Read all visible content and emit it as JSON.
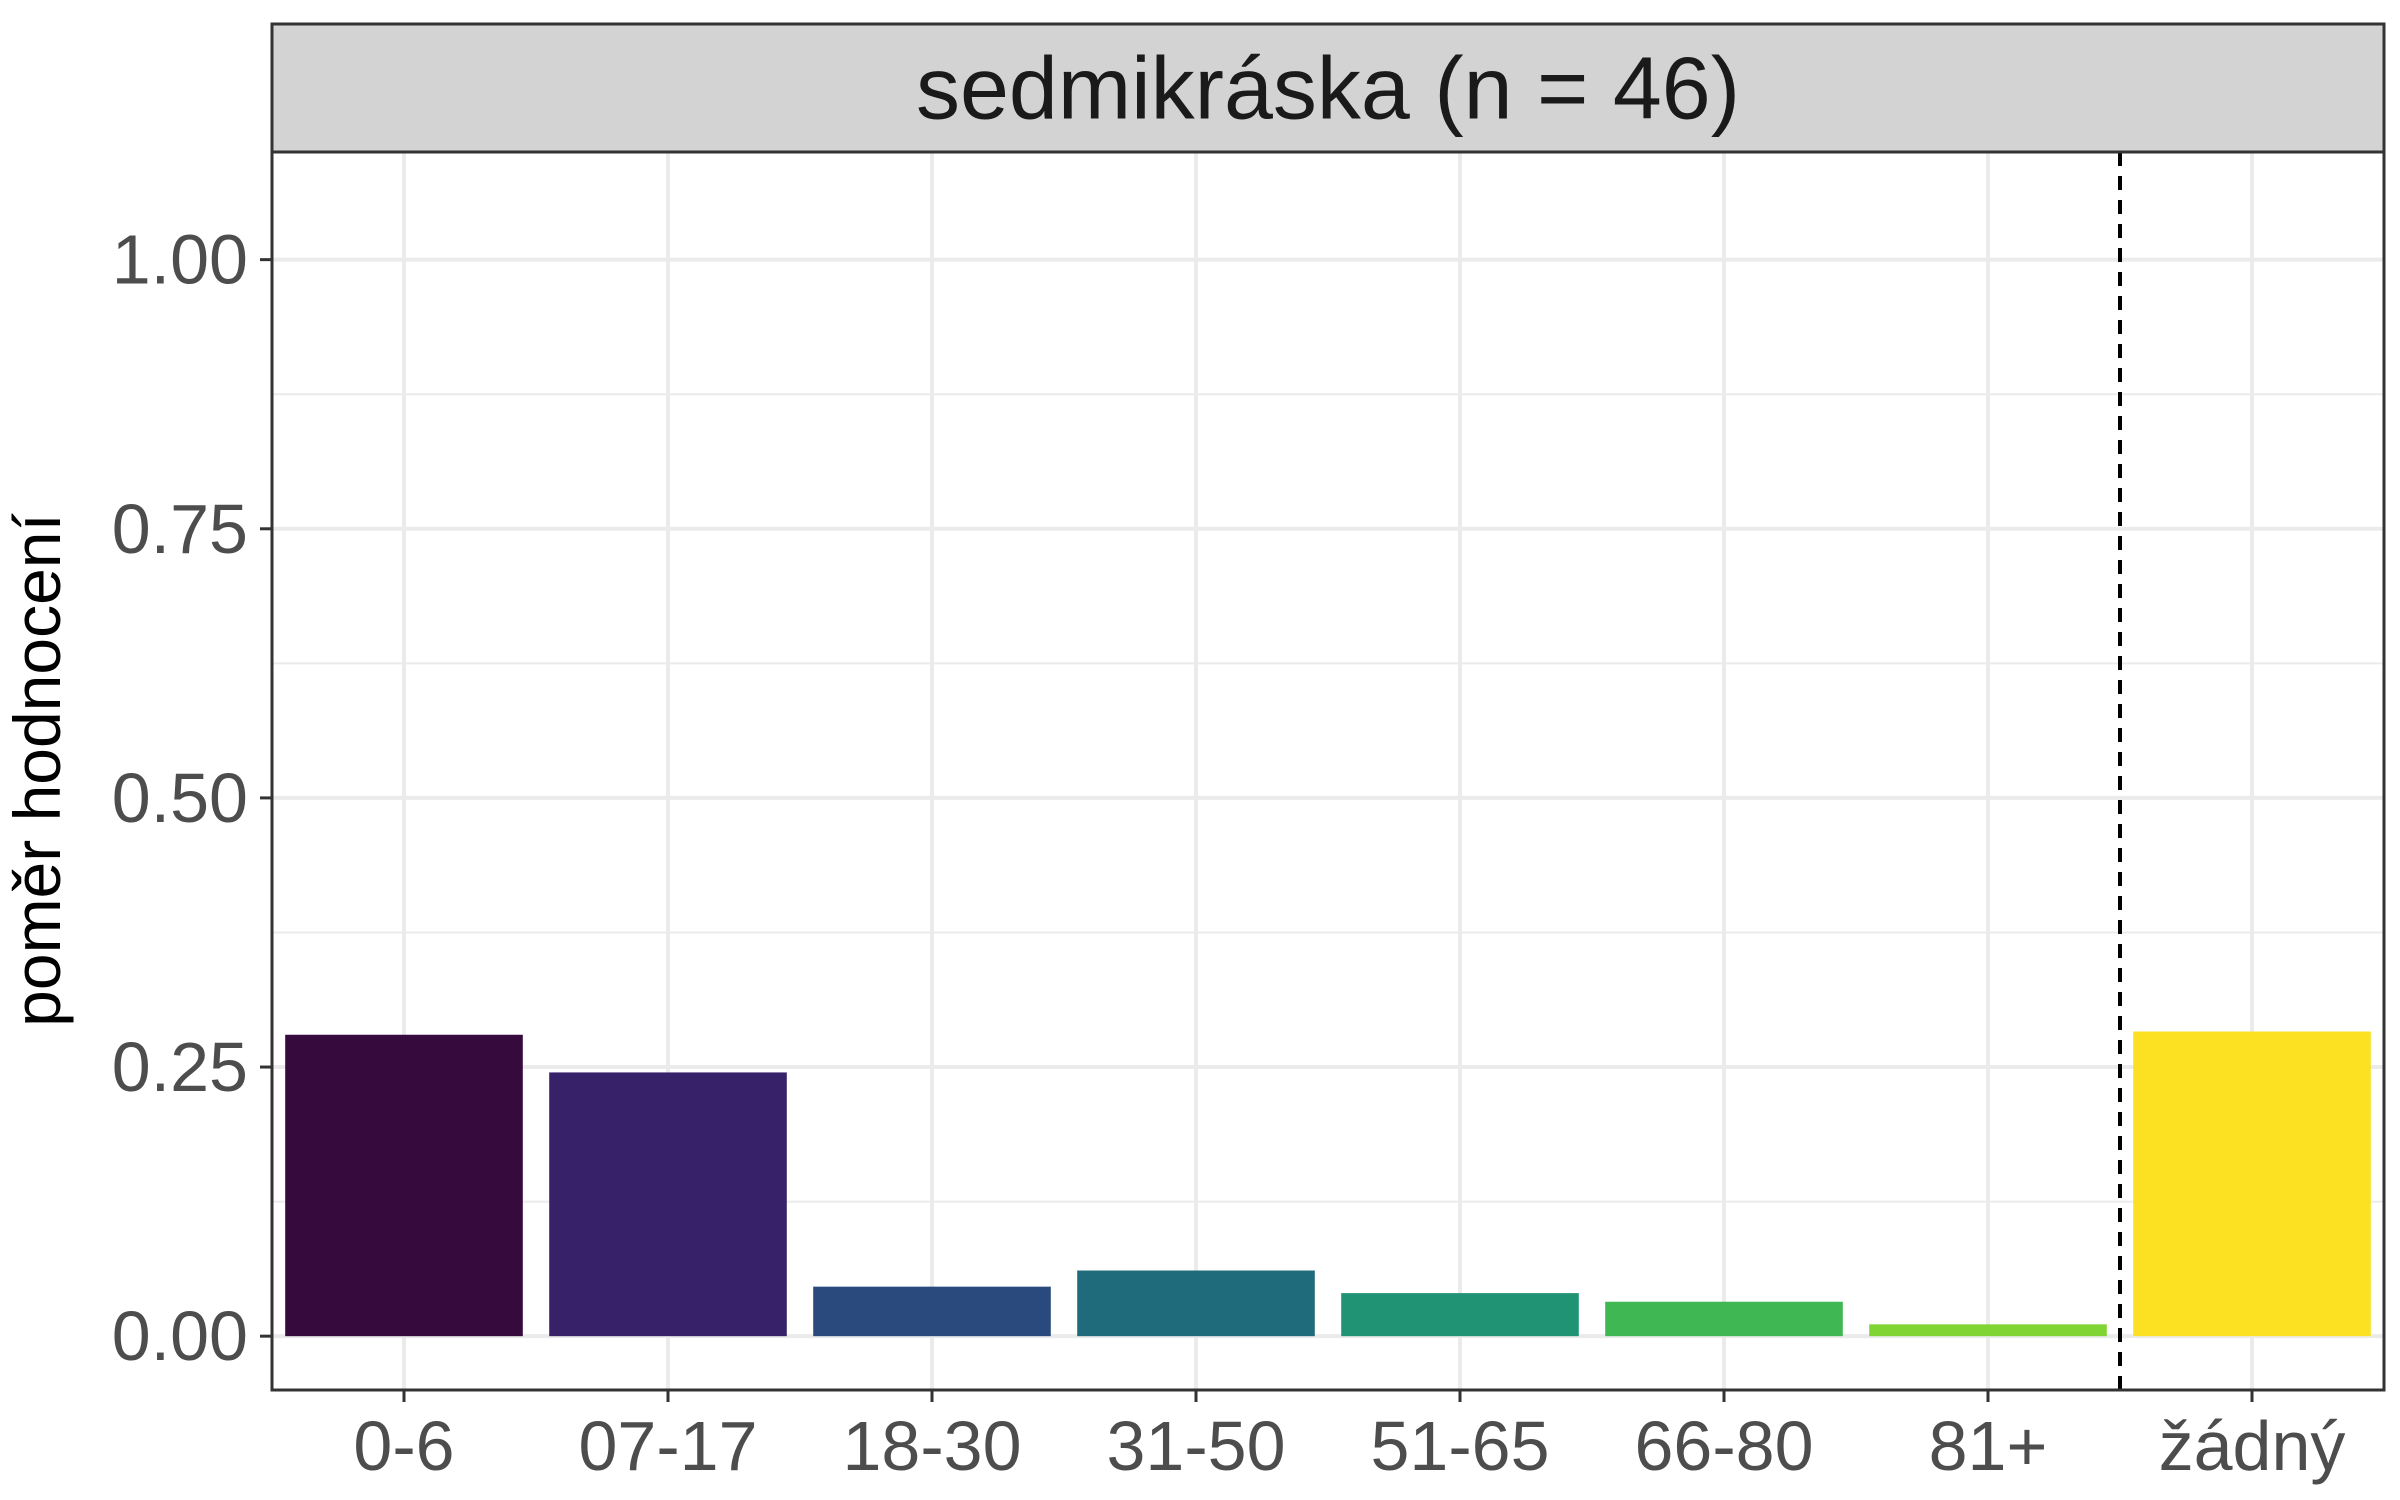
{
  "chart_data": {
    "type": "bar",
    "facet_title": "sedmikráska (n = 46)",
    "ylabel": "poměr hodnocení",
    "xlabel": "",
    "categories": [
      "0-6",
      "07-17",
      "18-30",
      "31-50",
      "51-65",
      "66-80",
      "81+",
      "žádný"
    ],
    "values": [
      0.28,
      0.245,
      0.046,
      0.061,
      0.04,
      0.032,
      0.011,
      0.283
    ],
    "colors": [
      "#360a3c",
      "#37226a",
      "#2a4a7d",
      "#206b7b",
      "#1f9373",
      "#3fb854",
      "#80d534",
      "#fbe122"
    ],
    "ylim": [
      -0.05,
      1.1
    ],
    "yticks": [
      0.0,
      0.25,
      0.5,
      0.75,
      1.0
    ],
    "ytick_labels": [
      "0.00",
      "0.25",
      "0.50",
      "0.75",
      "1.00"
    ],
    "yminor_ticks": [
      0.125,
      0.375,
      0.625,
      0.875
    ],
    "separator_after_category": 7,
    "separator_style": "dashed",
    "grid": true,
    "legend": "none",
    "theme": {
      "strip_fill": "#d3d3d3",
      "grid_color": "#ebebeb",
      "panel_border": "#333333",
      "separator_color": "#000000"
    }
  }
}
